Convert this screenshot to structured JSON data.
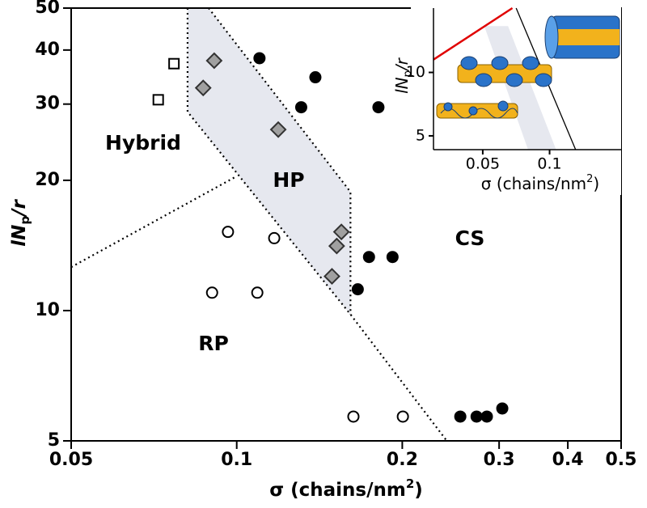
{
  "chart_data": [
    {
      "type": "scatter",
      "log_x": true,
      "log_y": true,
      "xlabel": [
        "σ (chains/nm",
        "2",
        ")"
      ],
      "ylabel": [
        "lN",
        "p",
        "/r"
      ],
      "annotations": [
        "Hybrid",
        "HP",
        "CS",
        "RP"
      ],
      "xlim": [
        0.05,
        0.5
      ],
      "ylim": [
        5,
        50
      ],
      "xticks": [
        0.05,
        0.1,
        0.2,
        0.3,
        0.4,
        0.5
      ],
      "yticks": [
        5,
        10,
        20,
        30,
        40,
        50
      ],
      "series": [
        {
          "marker": "square",
          "color": "#ffffff",
          "x": [
            0.0769,
            0.072
          ],
          "values": [
            37.2,
            30.7
          ]
        },
        {
          "marker": "diamond",
          "color": "#a0a0a0",
          "x": [
            0.091,
            0.0869,
            0.119,
            0.155,
            0.152,
            0.149
          ],
          "values": [
            37.8,
            32.7,
            26.2,
            15.2,
            14.1,
            12.0
          ]
        },
        {
          "marker": "circle",
          "color": "#000000",
          "x": [
            0.11,
            0.139,
            0.131,
            0.181,
            0.174,
            0.192,
            0.166,
            0.255,
            0.273,
            0.285,
            0.304
          ],
          "values": [
            38.3,
            34.6,
            29.5,
            29.5,
            13.3,
            13.3,
            11.2,
            5.69,
            5.69,
            5.69,
            5.94
          ]
        },
        {
          "marker": "circle",
          "color": "#ffffff",
          "x": [
            0.0964,
            0.117,
            0.0902,
            0.109,
            0.163,
            0.2005
          ],
          "values": [
            15.2,
            14.7,
            11.0,
            11.0,
            5.69,
            5.69
          ]
        }
      ],
      "region": {
        "color": "#e6e8ef",
        "x": [
          0.0814,
          0.0814,
          0.161,
          0.161,
          0.0889
        ],
        "values": [
          50,
          28.8,
          9.8,
          18.8,
          50
        ]
      },
      "boundaries": [
        {
          "x": [
            0.0814,
            0.0814,
            0.161,
            0.241
          ],
          "values": [
            50,
            28.8,
            9.8,
            5
          ]
        },
        {
          "x": [
            0.0889,
            0.161,
            0.161
          ],
          "values": [
            50,
            18.8,
            9.8
          ]
        },
        {
          "x": [
            0.05,
            0.099
          ],
          "values": [
            12.6,
            20.3
          ]
        }
      ]
    },
    {
      "type": "line",
      "log_x": true,
      "log_y": true,
      "xlabel": [
        "σ (chains/nm",
        "2",
        ")"
      ],
      "ylabel": [
        "lN",
        "p",
        "/r"
      ],
      "xlim": [
        0.03,
        0.21
      ],
      "ylim": [
        4.3,
        20.2
      ],
      "xticks": [
        0.05,
        0.1
      ],
      "yticks": [
        5,
        10
      ],
      "band": {
        "color": "#e6e8ef",
        "x": [
          0.0508,
          0.065,
          0.107,
          0.08
        ],
        "values": [
          16.6,
          16.6,
          4.3,
          4.3
        ]
      },
      "series": [
        {
          "color": "#e00000",
          "x": [
            0.03,
            0.068
          ],
          "values": [
            11.5,
            20.2
          ]
        },
        {
          "color": "#000000",
          "x": [
            0.0707,
            0.131
          ],
          "values": [
            20.2,
            4.3
          ]
        }
      ]
    }
  ]
}
